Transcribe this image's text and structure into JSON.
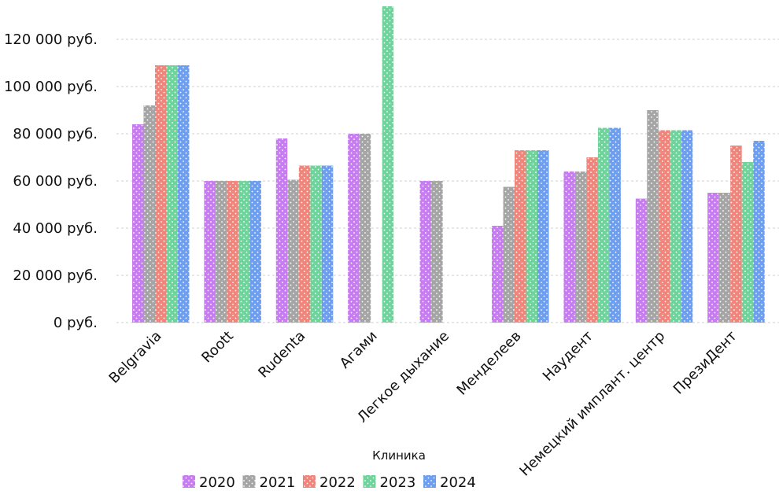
{
  "chart_data": {
    "type": "bar",
    "xlabel": "Клиника",
    "ylabel": "",
    "ylim": [
      0,
      135000
    ],
    "yticks": [
      0,
      20000,
      40000,
      60000,
      80000,
      100000,
      120000
    ],
    "ytick_labels": [
      "0 руб.",
      "20 000 руб.",
      "40 000 руб.",
      "60 000 руб.",
      "80 000 руб.",
      "100 000 руб.",
      "120 000 руб."
    ],
    "grid": true,
    "legend_position": "bottom",
    "categories": [
      "Belgravia",
      "Roott",
      "Rudenta",
      "Агами",
      "Легкое дыхание",
      "Менделеев",
      "Наудент",
      "Немецкий имплант. центр",
      "ПрезиДент"
    ],
    "series": [
      {
        "name": "2020",
        "color": "#c77cf2",
        "values": [
          84000,
          60000,
          78000,
          80000,
          60000,
          41000,
          64000,
          52500,
          55000
        ]
      },
      {
        "name": "2021",
        "color": "#a5a5a5",
        "values": [
          92000,
          60000,
          60500,
          80000,
          60000,
          57500,
          64000,
          90000,
          55000
        ]
      },
      {
        "name": "2022",
        "color": "#f0857c",
        "values": [
          109000,
          60000,
          66500,
          null,
          null,
          73000,
          70000,
          81500,
          75000
        ]
      },
      {
        "name": "2023",
        "color": "#6fd39c",
        "values": [
          109000,
          60000,
          66500,
          134000,
          null,
          73000,
          82500,
          81500,
          68000
        ]
      },
      {
        "name": "2024",
        "color": "#6d9ef0",
        "values": [
          109000,
          60000,
          66500,
          null,
          null,
          73000,
          82500,
          81500,
          77000
        ]
      }
    ]
  }
}
